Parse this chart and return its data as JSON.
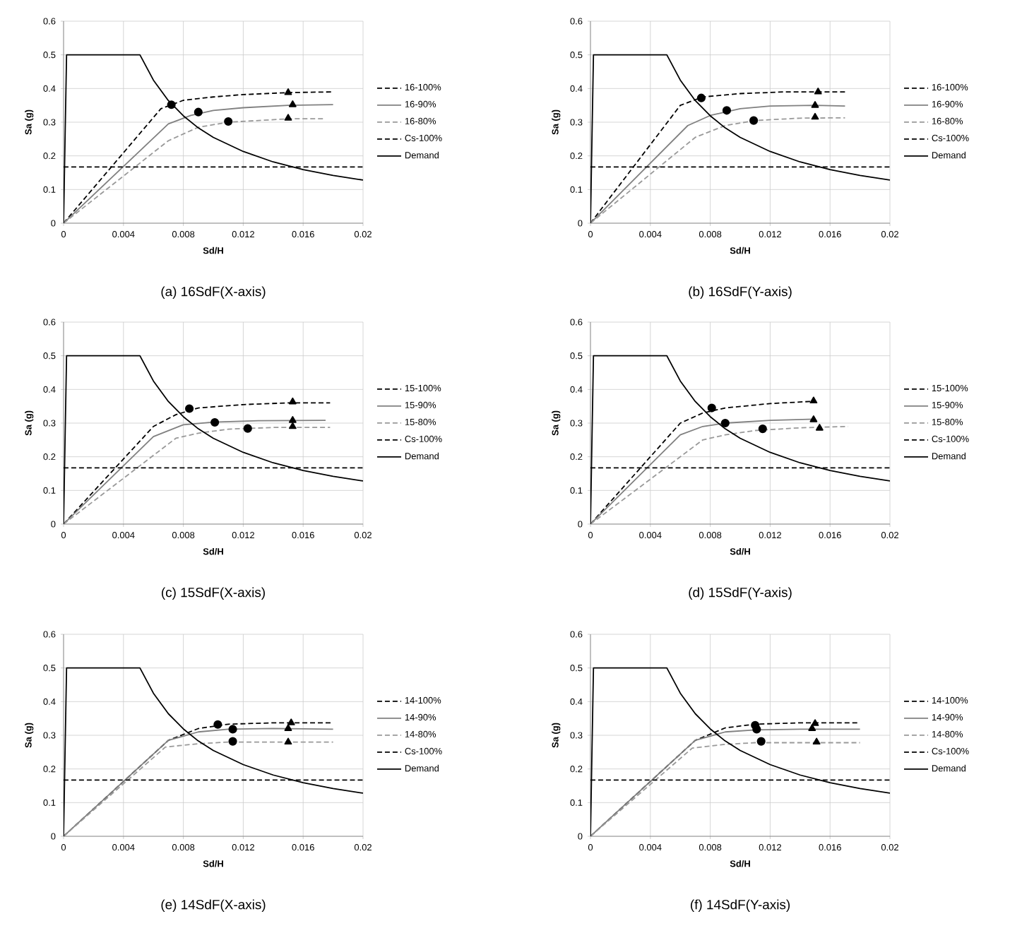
{
  "chart_data": [
    {
      "type": "line",
      "title": "(a) 16SdF(X-axis)",
      "xlabel": "Sd/H",
      "ylabel": "Sa (g)",
      "xlim": [
        0,
        0.02
      ],
      "ylim": [
        0,
        0.6
      ],
      "xticks": [
        0,
        0.004,
        0.008,
        0.012,
        0.016,
        0.02
      ],
      "yticks": [
        0,
        0.1,
        0.2,
        0.3,
        0.4,
        0.5,
        0.6
      ],
      "grid": true,
      "legend": "right",
      "series": [
        {
          "name": "16-100%",
          "color": "#000000",
          "line_style": "dashed",
          "x": [
            0,
            0.0065,
            0.008,
            0.01,
            0.012,
            0.015,
            0.018
          ],
          "values": [
            0,
            0.34,
            0.365,
            0.375,
            0.382,
            0.388,
            0.39
          ]
        },
        {
          "name": "16-90%",
          "color": "#808080",
          "line_style": "solid",
          "x": [
            0,
            0.007,
            0.0085,
            0.01,
            0.012,
            0.015,
            0.018
          ],
          "values": [
            0,
            0.295,
            0.32,
            0.335,
            0.343,
            0.35,
            0.352
          ]
        },
        {
          "name": "16-80%",
          "color": "#999999",
          "line_style": "dashed",
          "x": [
            0,
            0.007,
            0.009,
            0.011,
            0.013,
            0.015,
            0.0175
          ],
          "values": [
            0,
            0.245,
            0.285,
            0.3,
            0.305,
            0.31,
            0.31
          ]
        },
        {
          "name": "Cs-100%",
          "color": "#000000",
          "line_style": "dashed",
          "x": [
            0,
            0.02
          ],
          "values": [
            0.167,
            0.167
          ]
        },
        {
          "name": "Demand",
          "color": "#000000",
          "line_style": "solid",
          "x": [
            0,
            0.0002,
            0.0051,
            0.006,
            0.007,
            0.008,
            0.009,
            0.01,
            0.012,
            0.014,
            0.016,
            0.018,
            0.02
          ],
          "values": [
            0,
            0.5,
            0.5,
            0.425,
            0.364,
            0.319,
            0.283,
            0.255,
            0.213,
            0.182,
            0.159,
            0.142,
            0.128
          ]
        },
        {
          "type": "scatter",
          "marker": "circle",
          "color": "#000000",
          "x": [
            0.0072,
            0.009,
            0.011
          ],
          "values": [
            0.352,
            0.33,
            0.302
          ]
        },
        {
          "type": "scatter",
          "marker": "triangle",
          "color": "#000000",
          "x": [
            0.015,
            0.0153,
            0.015
          ],
          "values": [
            0.388,
            0.352,
            0.312
          ]
        }
      ]
    },
    {
      "type": "line",
      "title": "(b) 16SdF(Y-axis)",
      "xlabel": "Sd/H",
      "ylabel": "Sa (g)",
      "xlim": [
        0,
        0.02
      ],
      "ylim": [
        0,
        0.6
      ],
      "xticks": [
        0,
        0.004,
        0.008,
        0.012,
        0.016,
        0.02
      ],
      "yticks": [
        0,
        0.1,
        0.2,
        0.3,
        0.4,
        0.5,
        0.6
      ],
      "grid": true,
      "legend": "right",
      "series": [
        {
          "name": "16-100%",
          "color": "#000000",
          "line_style": "dashed",
          "x": [
            0,
            0.006,
            0.0075,
            0.01,
            0.013,
            0.017
          ],
          "values": [
            0,
            0.35,
            0.375,
            0.385,
            0.39,
            0.39
          ]
        },
        {
          "name": "16-90%",
          "color": "#808080",
          "line_style": "solid",
          "x": [
            0,
            0.0065,
            0.008,
            0.01,
            0.012,
            0.015,
            0.017
          ],
          "values": [
            0,
            0.29,
            0.32,
            0.34,
            0.348,
            0.35,
            0.348
          ]
        },
        {
          "name": "16-80%",
          "color": "#999999",
          "line_style": "dashed",
          "x": [
            0,
            0.007,
            0.009,
            0.011,
            0.014,
            0.017
          ],
          "values": [
            0,
            0.255,
            0.29,
            0.305,
            0.312,
            0.313
          ]
        },
        {
          "name": "Cs-100%",
          "color": "#000000",
          "line_style": "dashed",
          "x": [
            0,
            0.02
          ],
          "values": [
            0.167,
            0.167
          ]
        },
        {
          "name": "Demand",
          "color": "#000000",
          "line_style": "solid",
          "x": [
            0,
            0.0002,
            0.0051,
            0.006,
            0.007,
            0.008,
            0.009,
            0.01,
            0.012,
            0.014,
            0.016,
            0.018,
            0.02
          ],
          "values": [
            0,
            0.5,
            0.5,
            0.425,
            0.364,
            0.319,
            0.283,
            0.255,
            0.213,
            0.182,
            0.159,
            0.142,
            0.128
          ]
        },
        {
          "type": "scatter",
          "marker": "circle",
          "color": "#000000",
          "x": [
            0.0074,
            0.0091,
            0.0109
          ],
          "values": [
            0.372,
            0.335,
            0.305
          ]
        },
        {
          "type": "scatter",
          "marker": "triangle",
          "color": "#000000",
          "x": [
            0.0152,
            0.015,
            0.015
          ],
          "values": [
            0.39,
            0.35,
            0.315
          ]
        }
      ]
    },
    {
      "type": "line",
      "title": "(c) 15SdF(X-axis)",
      "xlabel": "Sd/H",
      "ylabel": "Sa (g)",
      "xlim": [
        0,
        0.02
      ],
      "ylim": [
        0,
        0.6
      ],
      "xticks": [
        0,
        0.004,
        0.008,
        0.012,
        0.016,
        0.02
      ],
      "yticks": [
        0,
        0.1,
        0.2,
        0.3,
        0.4,
        0.5,
        0.6
      ],
      "grid": true,
      "legend": "right",
      "series": [
        {
          "name": "15-100%",
          "color": "#000000",
          "line_style": "dashed",
          "x": [
            0,
            0.006,
            0.0075,
            0.009,
            0.012,
            0.015,
            0.0178
          ],
          "values": [
            0,
            0.29,
            0.325,
            0.345,
            0.355,
            0.36,
            0.36
          ]
        },
        {
          "name": "15-90%",
          "color": "#808080",
          "line_style": "solid",
          "x": [
            0,
            0.006,
            0.008,
            0.01,
            0.013,
            0.0175
          ],
          "values": [
            0,
            0.26,
            0.295,
            0.303,
            0.307,
            0.308
          ]
        },
        {
          "name": "15-80%",
          "color": "#999999",
          "line_style": "dashed",
          "x": [
            0,
            0.0075,
            0.009,
            0.011,
            0.014,
            0.0178
          ],
          "values": [
            0,
            0.255,
            0.27,
            0.282,
            0.287,
            0.287
          ]
        },
        {
          "name": "Cs-100%",
          "color": "#000000",
          "line_style": "dashed",
          "x": [
            0,
            0.02
          ],
          "values": [
            0.167,
            0.167
          ]
        },
        {
          "name": "Demand",
          "color": "#000000",
          "line_style": "solid",
          "x": [
            0,
            0.0002,
            0.0051,
            0.006,
            0.007,
            0.008,
            0.009,
            0.01,
            0.012,
            0.014,
            0.016,
            0.018,
            0.02
          ],
          "values": [
            0,
            0.5,
            0.5,
            0.425,
            0.364,
            0.319,
            0.283,
            0.255,
            0.213,
            0.182,
            0.159,
            0.142,
            0.128
          ]
        },
        {
          "type": "scatter",
          "marker": "circle",
          "color": "#000000",
          "x": [
            0.0084,
            0.0101,
            0.0123
          ],
          "values": [
            0.343,
            0.302,
            0.284
          ]
        },
        {
          "type": "scatter",
          "marker": "triangle",
          "color": "#000000",
          "x": [
            0.0153,
            0.0153,
            0.0153
          ],
          "values": [
            0.363,
            0.308,
            0.29
          ]
        }
      ]
    },
    {
      "type": "line",
      "title": "(d) 15SdF(Y-axis)",
      "xlabel": "Sd/H",
      "ylabel": "Sa (g)",
      "xlim": [
        0,
        0.02
      ],
      "ylim": [
        0,
        0.6
      ],
      "xticks": [
        0,
        0.004,
        0.008,
        0.012,
        0.016,
        0.02
      ],
      "yticks": [
        0,
        0.1,
        0.2,
        0.3,
        0.4,
        0.5,
        0.6
      ],
      "grid": true,
      "legend": "right",
      "series": [
        {
          "name": "15-100%",
          "color": "#000000",
          "line_style": "dashed",
          "x": [
            0,
            0.006,
            0.0075,
            0.009,
            0.012,
            0.015
          ],
          "values": [
            0,
            0.3,
            0.33,
            0.345,
            0.358,
            0.365
          ]
        },
        {
          "name": "15-90%",
          "color": "#808080",
          "line_style": "solid",
          "x": [
            0,
            0.006,
            0.0075,
            0.009,
            0.012,
            0.015
          ],
          "values": [
            0,
            0.265,
            0.29,
            0.3,
            0.308,
            0.312
          ]
        },
        {
          "name": "15-80%",
          "color": "#999999",
          "line_style": "dashed",
          "x": [
            0,
            0.0075,
            0.009,
            0.011,
            0.014,
            0.0172
          ],
          "values": [
            0,
            0.25,
            0.265,
            0.278,
            0.286,
            0.29
          ]
        },
        {
          "name": "Cs-100%",
          "color": "#000000",
          "line_style": "dashed",
          "x": [
            0,
            0.02
          ],
          "values": [
            0.167,
            0.167
          ]
        },
        {
          "name": "Demand",
          "color": "#000000",
          "line_style": "solid",
          "x": [
            0,
            0.0002,
            0.0051,
            0.006,
            0.007,
            0.008,
            0.009,
            0.01,
            0.012,
            0.014,
            0.016,
            0.018,
            0.02
          ],
          "values": [
            0,
            0.5,
            0.5,
            0.425,
            0.364,
            0.319,
            0.283,
            0.255,
            0.213,
            0.182,
            0.159,
            0.142,
            0.128
          ]
        },
        {
          "type": "scatter",
          "marker": "circle",
          "color": "#000000",
          "x": [
            0.0081,
            0.009,
            0.0115
          ],
          "values": [
            0.345,
            0.3,
            0.283
          ]
        },
        {
          "type": "scatter",
          "marker": "triangle",
          "color": "#000000",
          "x": [
            0.0149,
            0.0149,
            0.0153
          ],
          "values": [
            0.366,
            0.31,
            0.285
          ]
        }
      ]
    },
    {
      "type": "line",
      "title": "(e) 14SdF(X-axis)",
      "xlabel": "Sd/H",
      "ylabel": "Sa (g)",
      "xlim": [
        0,
        0.02
      ],
      "ylim": [
        0,
        0.6
      ],
      "xticks": [
        0,
        0.004,
        0.008,
        0.012,
        0.016,
        0.02
      ],
      "yticks": [
        0,
        0.1,
        0.2,
        0.3,
        0.4,
        0.5,
        0.6
      ],
      "grid": true,
      "legend": "right",
      "series": [
        {
          "name": "14-100%",
          "color": "#000000",
          "line_style": "dashed",
          "x": [
            0,
            0.007,
            0.009,
            0.011,
            0.014,
            0.018
          ],
          "values": [
            0,
            0.285,
            0.32,
            0.333,
            0.337,
            0.337
          ]
        },
        {
          "name": "14-90%",
          "color": "#808080",
          "line_style": "solid",
          "x": [
            0,
            0.007,
            0.009,
            0.011,
            0.014,
            0.018
          ],
          "values": [
            0,
            0.285,
            0.31,
            0.318,
            0.32,
            0.318
          ]
        },
        {
          "name": "14-80%",
          "color": "#999999",
          "line_style": "dashed",
          "x": [
            0,
            0.0068,
            0.009,
            0.011,
            0.018
          ],
          "values": [
            0,
            0.265,
            0.275,
            0.28,
            0.28
          ]
        },
        {
          "name": "Cs-100%",
          "color": "#000000",
          "line_style": "dashed",
          "x": [
            0,
            0.02
          ],
          "values": [
            0.167,
            0.167
          ]
        },
        {
          "name": "Demand",
          "color": "#000000",
          "line_style": "solid",
          "x": [
            0,
            0.0002,
            0.0051,
            0.006,
            0.007,
            0.008,
            0.009,
            0.01,
            0.012,
            0.014,
            0.016,
            0.018,
            0.02
          ],
          "values": [
            0,
            0.5,
            0.5,
            0.425,
            0.364,
            0.319,
            0.283,
            0.255,
            0.213,
            0.182,
            0.159,
            0.142,
            0.128
          ]
        },
        {
          "type": "scatter",
          "marker": "circle",
          "color": "#000000",
          "x": [
            0.0103,
            0.0113,
            0.0113
          ],
          "values": [
            0.332,
            0.318,
            0.282
          ]
        },
        {
          "type": "scatter",
          "marker": "triangle",
          "color": "#000000",
          "x": [
            0.0152,
            0.015,
            0.015
          ],
          "values": [
            0.337,
            0.32,
            0.28
          ]
        }
      ]
    },
    {
      "type": "line",
      "title": "(f) 14SdF(Y-axis)",
      "xlabel": "Sd/H",
      "ylabel": "Sa (g)",
      "xlim": [
        0,
        0.02
      ],
      "ylim": [
        0,
        0.6
      ],
      "xticks": [
        0,
        0.004,
        0.008,
        0.012,
        0.016,
        0.02
      ],
      "yticks": [
        0,
        0.1,
        0.2,
        0.3,
        0.4,
        0.5,
        0.6
      ],
      "grid": true,
      "legend": "right",
      "series": [
        {
          "name": "14-100%",
          "color": "#000000",
          "line_style": "dashed",
          "x": [
            0,
            0.007,
            0.009,
            0.011,
            0.014,
            0.018
          ],
          "values": [
            0,
            0.285,
            0.322,
            0.333,
            0.337,
            0.337
          ]
        },
        {
          "name": "14-90%",
          "color": "#808080",
          "line_style": "solid",
          "x": [
            0,
            0.007,
            0.009,
            0.011,
            0.014,
            0.018
          ],
          "values": [
            0,
            0.285,
            0.31,
            0.316,
            0.318,
            0.318
          ]
        },
        {
          "name": "14-80%",
          "color": "#999999",
          "line_style": "dashed",
          "x": [
            0,
            0.0068,
            0.009,
            0.011,
            0.018
          ],
          "values": [
            0,
            0.262,
            0.273,
            0.278,
            0.278
          ]
        },
        {
          "name": "Cs-100%",
          "color": "#000000",
          "line_style": "dashed",
          "x": [
            0,
            0.02
          ],
          "values": [
            0.167,
            0.167
          ]
        },
        {
          "name": "Demand",
          "color": "#000000",
          "line_style": "solid",
          "x": [
            0,
            0.0002,
            0.0051,
            0.006,
            0.007,
            0.008,
            0.009,
            0.01,
            0.012,
            0.014,
            0.016,
            0.018,
            0.02
          ],
          "values": [
            0,
            0.5,
            0.5,
            0.425,
            0.364,
            0.319,
            0.283,
            0.255,
            0.213,
            0.182,
            0.159,
            0.142,
            0.128
          ]
        },
        {
          "type": "scatter",
          "marker": "circle",
          "color": "#000000",
          "x": [
            0.011,
            0.0111,
            0.0114
          ],
          "values": [
            0.33,
            0.318,
            0.282
          ]
        },
        {
          "type": "scatter",
          "marker": "triangle",
          "color": "#000000",
          "x": [
            0.015,
            0.0148,
            0.0151
          ],
          "values": [
            0.335,
            0.32,
            0.28
          ]
        }
      ]
    }
  ]
}
